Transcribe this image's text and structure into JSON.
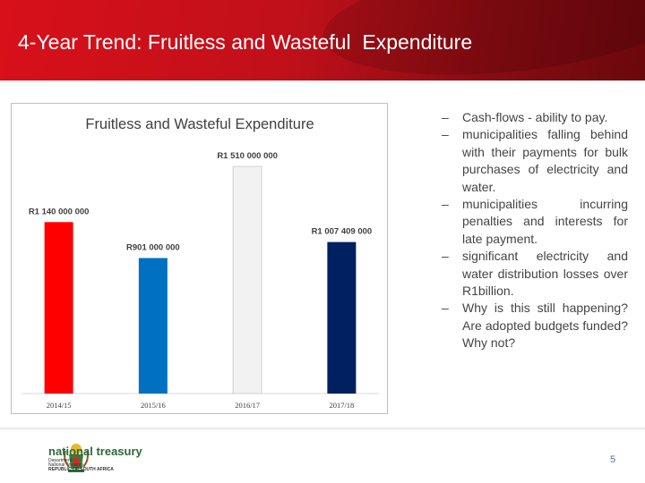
{
  "header": {
    "title": "4-Year Trend: Fruitless and Wasteful  Expenditure"
  },
  "chart_data": {
    "type": "bar",
    "title": "Fruitless and Wasteful Expenditure",
    "categories": [
      "2014/15",
      "2015/16",
      "2016/17",
      "2017/18"
    ],
    "values": [
      1140000000,
      901000000,
      1510000000,
      1007409000
    ],
    "data_labels": [
      "R1 140 000 000",
      "R901 000 000",
      "R1 510 000 000",
      "R1 007 409 000"
    ],
    "colors": [
      "#ff0000",
      "#0070c0",
      "#f2f2f2",
      "#002060"
    ],
    "xlabel": "",
    "ylabel": "",
    "ylim": [
      0,
      1600000000
    ],
    "grid": false,
    "legend": "none"
  },
  "bullets": {
    "marker": "–",
    "items": [
      "Cash-flows - ability to pay.",
      "municipalities falling behind with their payments for bulk purchases of electricity and water.",
      "municipalities incurring penalties and interests for late payment.",
      "significant electricity and water distribution losses over R1billion.",
      "Why is this still happening? Are adopted budgets funded? Why not?"
    ]
  },
  "footer": {
    "logo_name": "national treasury",
    "logo_sub": [
      "Department:",
      "National Treasury",
      "REPUBLIC OF SOUTH AFRICA"
    ],
    "page_number": "5",
    "accent_green": "#2a6a3a",
    "page_number_color": "#4a76b8"
  }
}
